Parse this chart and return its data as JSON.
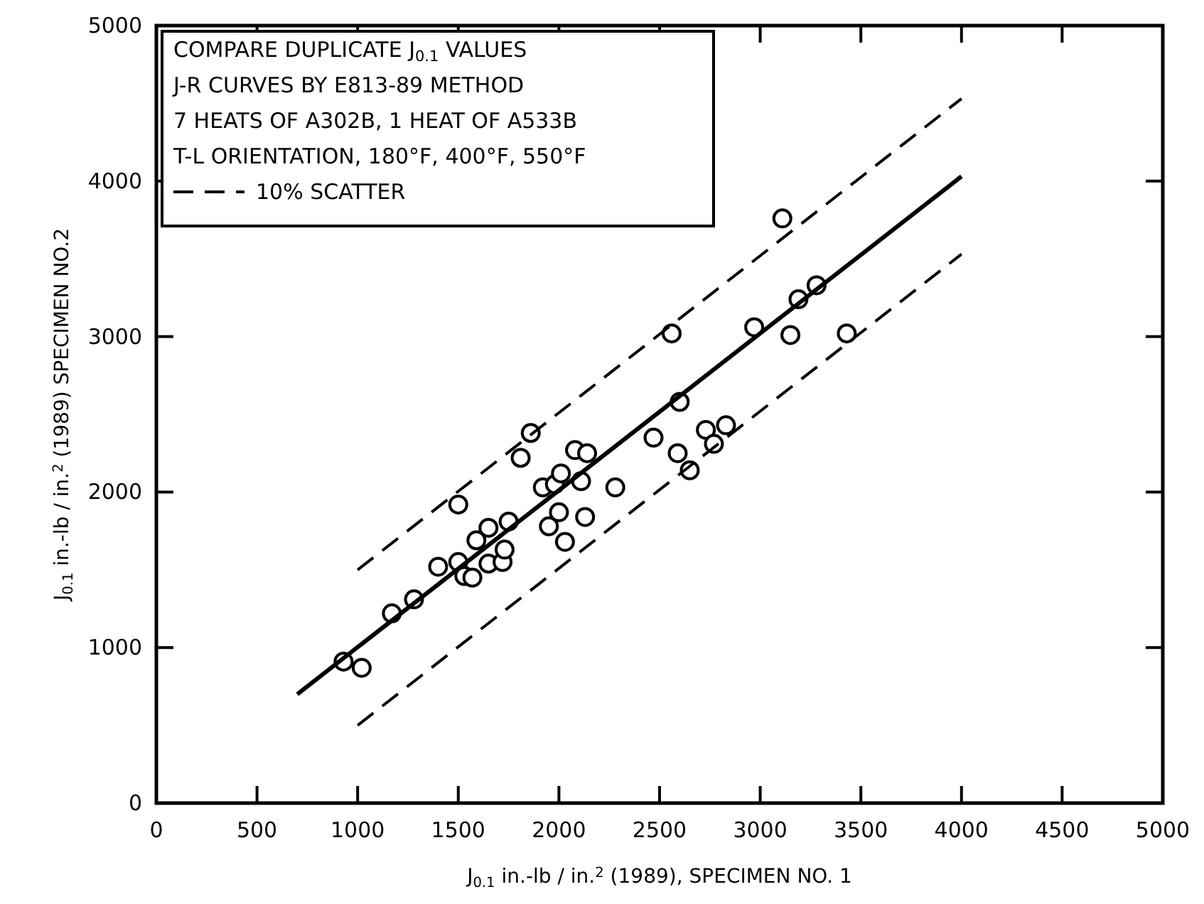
{
  "chart_data": {
    "type": "scatter",
    "xlabel": "J$_{0.1}$ in.-lb / in.$^{2}$ (1989), SPECIMEN  NO. 1",
    "ylabel": "J$_{0.1}$ in.-lb / in.$^{2}$ (1989)  SPECIMEN NO.2",
    "annotations": [
      "COMPARE DUPLICATE J$_{0.1}$ VALUES",
      "J-R CURVES BY E813-89 METHOD",
      "7 HEATS OF A302B, 1 HEAT OF A533B",
      "T-L ORIENTATION, 180°F, 400°F, 550°F"
    ],
    "xlim": [
      0,
      5000
    ],
    "ylim": [
      0,
      5000
    ],
    "xticks": [
      0,
      500,
      1000,
      1500,
      2000,
      2500,
      3000,
      3500,
      4000,
      4500,
      5000
    ],
    "yticks": [
      0,
      1000,
      2000,
      3000,
      4000,
      5000
    ],
    "grid": false,
    "legend": "top left",
    "marker": "circle",
    "series": [
      {
        "color": "#000000",
        "x": [
          930,
          1020,
          1170,
          1280,
          1400,
          1500,
          1530,
          1570,
          1500,
          1590,
          1650,
          1650,
          1720,
          1730,
          1750,
          1810,
          1860,
          1920,
          1980,
          2010,
          1950,
          2000,
          2030,
          2080,
          2140,
          2110,
          2130,
          2280,
          2470,
          3110,
          2560,
          2970,
          3190,
          3280,
          3150,
          3430,
          2600,
          2590,
          2730,
          2830,
          2770,
          2650
        ],
        "values": [
          910,
          870,
          1220,
          1310,
          1520,
          1550,
          1460,
          1450,
          1920,
          1690,
          1770,
          1540,
          1550,
          1630,
          1810,
          2220,
          2380,
          2030,
          2050,
          2120,
          1780,
          1870,
          1680,
          2270,
          2250,
          2070,
          1840,
          2030,
          2350,
          3760,
          3020,
          3060,
          3240,
          3330,
          3010,
          3020,
          2580,
          2250,
          2400,
          2430,
          2310,
          2140
        ]
      },
      {
        "type": "line",
        "marker": "none",
        "color": "#000000",
        "line_style": "solid",
        "x": [
          700,
          4000
        ],
        "values": [
          700,
          4030
        ]
      },
      {
        "type": "line",
        "marker": "none",
        "name": "10% SCATTER",
        "color": "#000000",
        "line_style": "dashed",
        "x": [
          1000,
          4000
        ],
        "values": [
          1500,
          4530
        ]
      },
      {
        "type": "line",
        "marker": "none",
        "color": "#000000",
        "line_style": "dashed",
        "x": [
          1000,
          4000
        ],
        "values": [
          500,
          3530
        ]
      }
    ]
  }
}
